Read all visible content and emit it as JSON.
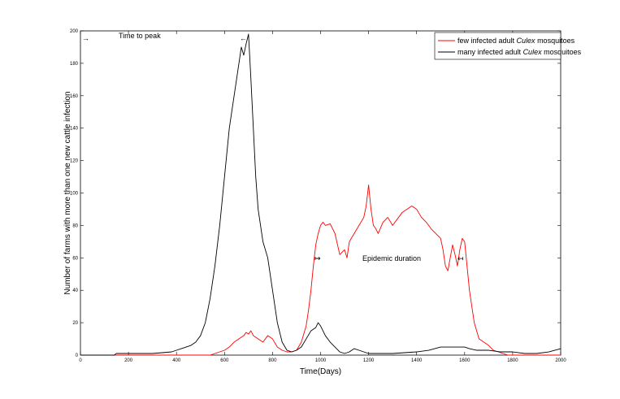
{
  "chart_data": {
    "type": "line",
    "title": "",
    "xlabel": "Time(Days)",
    "ylabel": "Number of farms with more than one new cattle infection",
    "xlim": [
      0,
      2000
    ],
    "ylim": [
      0,
      200
    ],
    "xticks": [
      0,
      200,
      400,
      600,
      800,
      1000,
      1200,
      1400,
      1600,
      1800,
      2000
    ],
    "yticks": [
      0,
      20,
      40,
      60,
      80,
      100,
      120,
      140,
      160,
      180,
      200
    ],
    "grid": false,
    "legend_position": "top-right",
    "legend": {
      "few": {
        "prefix": "few infected adult ",
        "italic": "Culex",
        "suffix": " mosquitoes"
      },
      "many": {
        "prefix": "many infected adult ",
        "italic": "Culex",
        "suffix": " mosquitoes"
      }
    },
    "annotations": {
      "time_to_peak": "Time to peak",
      "epidemic_duration": "Epidemic duration",
      "arrow_right": "→",
      "arrow_left": "←",
      "arrow_right_bar": "↦",
      "arrow_left_bar": "↤"
    },
    "series": [
      {
        "name": "few infected adult Culex mosquitoes",
        "color": "#ff0000",
        "x": [
          0,
          540,
          560,
          580,
          600,
          620,
          640,
          660,
          680,
          690,
          700,
          710,
          720,
          740,
          760,
          780,
          800,
          820,
          840,
          860,
          880,
          900,
          920,
          940,
          950,
          960,
          970,
          980,
          990,
          1000,
          1010,
          1020,
          1040,
          1060,
          1080,
          1100,
          1110,
          1120,
          1140,
          1160,
          1180,
          1190,
          1200,
          1210,
          1220,
          1230,
          1240,
          1260,
          1280,
          1300,
          1320,
          1340,
          1360,
          1380,
          1400,
          1420,
          1440,
          1460,
          1480,
          1500,
          1510,
          1520,
          1530,
          1540,
          1550,
          1560,
          1570,
          1580,
          1590,
          1600,
          1610,
          1620,
          1630,
          1640,
          1660,
          1680,
          1700,
          1720,
          1740,
          1760,
          1780,
          2000
        ],
        "y": [
          0,
          0,
          1,
          2,
          3,
          5,
          8,
          10,
          12,
          14,
          13,
          15,
          12,
          10,
          8,
          12,
          10,
          5,
          3,
          2,
          2,
          3,
          8,
          18,
          28,
          40,
          55,
          68,
          75,
          80,
          82,
          80,
          81,
          75,
          62,
          65,
          60,
          70,
          75,
          80,
          85,
          92,
          105,
          90,
          80,
          78,
          75,
          82,
          85,
          80,
          84,
          88,
          90,
          92,
          90,
          85,
          82,
          78,
          75,
          72,
          65,
          55,
          52,
          60,
          68,
          62,
          55,
          65,
          72,
          70,
          55,
          40,
          30,
          20,
          10,
          8,
          6,
          3,
          2,
          1,
          0,
          0
        ]
      },
      {
        "name": "many infected adult Culex mosquitoes",
        "color": "#000000",
        "x": [
          0,
          140,
          150,
          300,
          380,
          400,
          420,
          440,
          460,
          480,
          500,
          520,
          540,
          560,
          580,
          600,
          620,
          640,
          660,
          670,
          680,
          690,
          700,
          710,
          720,
          730,
          740,
          750,
          760,
          780,
          800,
          820,
          840,
          860,
          880,
          900,
          920,
          940,
          960,
          980,
          990,
          1000,
          1010,
          1020,
          1040,
          1060,
          1080,
          1100,
          1120,
          1140,
          1160,
          1200,
          1300,
          1400,
          1450,
          1500,
          1600,
          1620,
          1650,
          1700,
          1750,
          1800,
          1850,
          1900,
          1950,
          2000
        ],
        "y": [
          0,
          0,
          1,
          1,
          2,
          3,
          4,
          5,
          6,
          8,
          12,
          20,
          35,
          55,
          80,
          110,
          140,
          160,
          180,
          190,
          185,
          192,
          198,
          170,
          140,
          110,
          90,
          80,
          70,
          60,
          40,
          20,
          8,
          3,
          2,
          3,
          5,
          10,
          15,
          17,
          20,
          18,
          15,
          12,
          8,
          5,
          2,
          1,
          2,
          4,
          3,
          1,
          1,
          2,
          3,
          5,
          5,
          4,
          3,
          3,
          2,
          2,
          1,
          1,
          2,
          4
        ]
      }
    ]
  }
}
